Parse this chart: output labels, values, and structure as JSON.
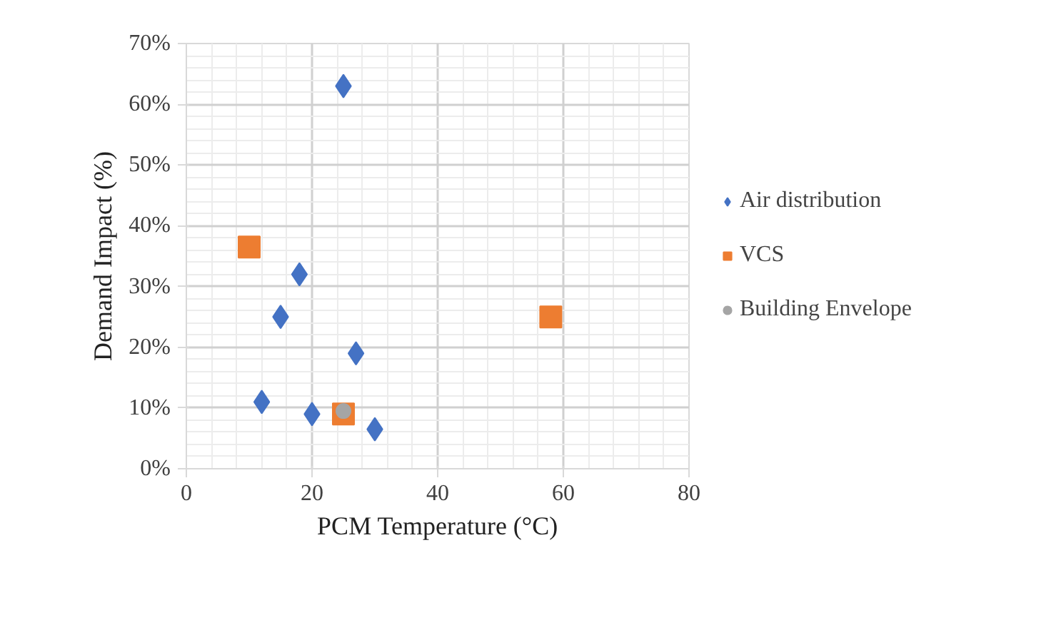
{
  "chart_data": {
    "type": "scatter",
    "xlabel": "PCM Temperature (°C)",
    "ylabel": "Demand Impact (%)",
    "xlim": [
      0,
      80
    ],
    "xticks": [
      0,
      20,
      40,
      60,
      80
    ],
    "ylim": [
      0,
      70
    ],
    "yticks": [
      {
        "value": 0,
        "label": "0%"
      },
      {
        "value": 10,
        "label": "10%"
      },
      {
        "value": 20,
        "label": "20%"
      },
      {
        "value": 30,
        "label": "30%"
      },
      {
        "value": 40,
        "label": "40%"
      },
      {
        "value": 50,
        "label": "50%"
      },
      {
        "value": 60,
        "label": "60%"
      },
      {
        "value": 70,
        "label": "70%"
      }
    ],
    "grid": true,
    "legend": "right",
    "series": [
      {
        "name": "Air distribution",
        "color": "#4472c4",
        "marker": "diamond",
        "x": [
          25,
          18,
          15,
          27,
          12,
          20,
          30
        ],
        "values": [
          63,
          32,
          25,
          19,
          11,
          9,
          6.5
        ]
      },
      {
        "name": "VCS",
        "color": "#ed7d31",
        "marker": "square",
        "x": [
          10,
          58,
          25
        ],
        "values": [
          36.5,
          25,
          9
        ]
      },
      {
        "name": "Building Envelope",
        "color": "#a5a5a5",
        "marker": "circle",
        "x": [
          25
        ],
        "values": [
          9.5
        ]
      }
    ]
  }
}
